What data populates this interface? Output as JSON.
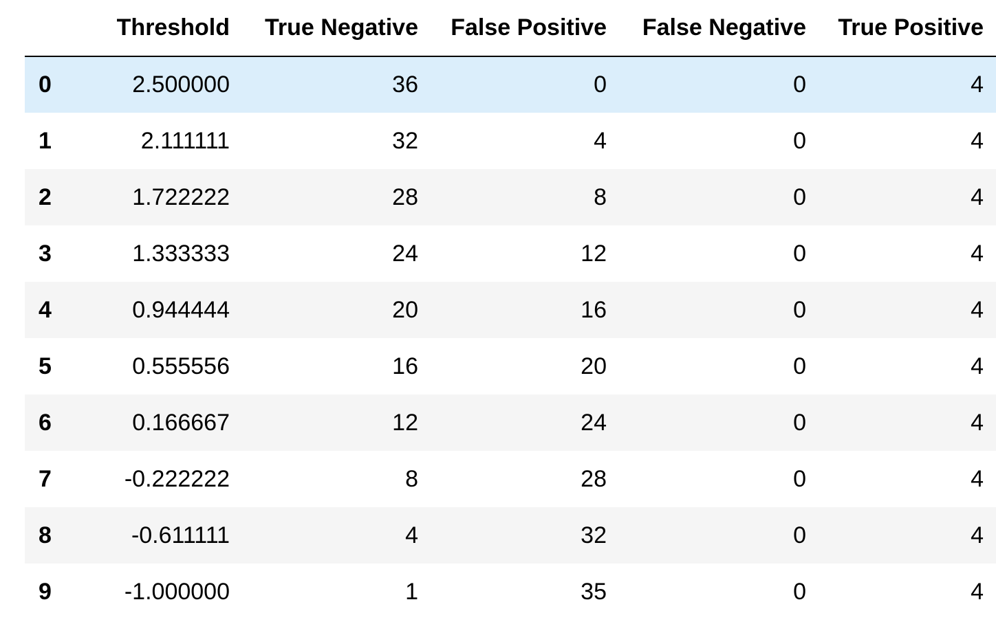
{
  "table": {
    "columns": [
      "Threshold",
      "True Negative",
      "False Positive",
      "False Negative",
      "True Positive"
    ],
    "rows": [
      {
        "index": "0",
        "cells": [
          "2.500000",
          "36",
          "0",
          "0",
          "4"
        ]
      },
      {
        "index": "1",
        "cells": [
          "2.111111",
          "32",
          "4",
          "0",
          "4"
        ]
      },
      {
        "index": "2",
        "cells": [
          "1.722222",
          "28",
          "8",
          "0",
          "4"
        ]
      },
      {
        "index": "3",
        "cells": [
          "1.333333",
          "24",
          "12",
          "0",
          "4"
        ]
      },
      {
        "index": "4",
        "cells": [
          "0.944444",
          "20",
          "16",
          "0",
          "4"
        ]
      },
      {
        "index": "5",
        "cells": [
          "0.555556",
          "16",
          "20",
          "0",
          "4"
        ]
      },
      {
        "index": "6",
        "cells": [
          "0.166667",
          "12",
          "24",
          "0",
          "4"
        ]
      },
      {
        "index": "7",
        "cells": [
          "-0.222222",
          "8",
          "28",
          "0",
          "4"
        ]
      },
      {
        "index": "8",
        "cells": [
          "-0.611111",
          "4",
          "32",
          "0",
          "4"
        ]
      },
      {
        "index": "9",
        "cells": [
          "-1.000000",
          "1",
          "35",
          "0",
          "4"
        ]
      }
    ],
    "highlighted_row": 0,
    "colors": {
      "header_rule": "#000000",
      "row_stripe": "#f5f5f5",
      "row_hover": "#dbeefb"
    }
  }
}
